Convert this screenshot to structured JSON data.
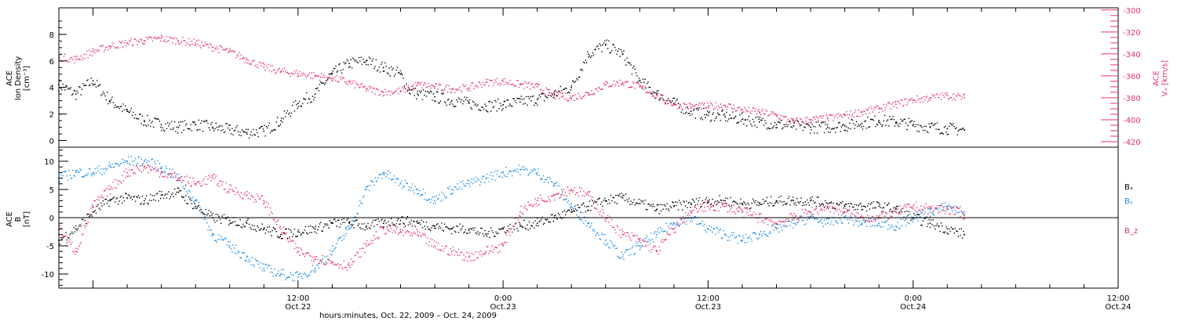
{
  "colors": {
    "black": "#000000",
    "pink": "#e8336a",
    "blue": "#1a8ae6"
  },
  "xaxis": {
    "title": "hours:minutes, Oct. 22, 2009 – Oct. 24, 2009",
    "range_hours": [
      -14,
      48
    ],
    "ticks": [
      {
        "h": 0,
        "time": "12:00",
        "date": "Oct.22"
      },
      {
        "h": 12,
        "time": "0:00",
        "date": "Oct.23"
      },
      {
        "h": 24,
        "time": "12:00",
        "date": "Oct.23"
      },
      {
        "h": 36,
        "time": "0:00",
        "date": "Oct.24"
      },
      {
        "h": 48,
        "time": "12:00",
        "date": "Oct.24"
      }
    ],
    "data_end_hours": 39
  },
  "chart_data": [
    {
      "type": "scatter",
      "panel": "top",
      "ylabel_left": [
        "ACE",
        "Ion Density",
        "[cm⁻³]"
      ],
      "ylim_left": [
        -0.5,
        10
      ],
      "yticks_left": [
        0,
        2,
        4,
        6,
        8
      ],
      "ylabel_right": [
        "ACE",
        "Vₓ [km/s]"
      ],
      "ylim_right": [
        -425,
        -298
      ],
      "yticks_right": [
        -420,
        -400,
        -380,
        -360,
        -340,
        -320,
        -300
      ],
      "series": [
        {
          "axis": "left",
          "color": "black",
          "points": [
            [
              -14,
              4.2
            ],
            [
              -13,
              3.5
            ],
            [
              -12,
              4.5
            ],
            [
              -11,
              3.0
            ],
            [
              -10,
              2.2
            ],
            [
              -9,
              1.5
            ],
            [
              -8,
              1.2
            ],
            [
              -7,
              1.0
            ],
            [
              -6,
              1.2
            ],
            [
              -5,
              1.0
            ],
            [
              -4,
              0.8
            ],
            [
              -3,
              0.6
            ],
            [
              -2,
              0.7
            ],
            [
              -1,
              1.5
            ],
            [
              0,
              2.8
            ],
            [
              1,
              3.5
            ],
            [
              2,
              5.0
            ],
            [
              3,
              5.8
            ],
            [
              4,
              6.0
            ],
            [
              5,
              5.5
            ],
            [
              6,
              5.0
            ],
            [
              6.5,
              3.8
            ],
            [
              7,
              3.5
            ],
            [
              8,
              3.3
            ],
            [
              9,
              3.0
            ],
            [
              10,
              2.8
            ],
            [
              11,
              2.6
            ],
            [
              12,
              2.7
            ],
            [
              13,
              2.9
            ],
            [
              14,
              3.1
            ],
            [
              15,
              3.5
            ],
            [
              16,
              4.0
            ],
            [
              17,
              6.5
            ],
            [
              18,
              7.2
            ],
            [
              19,
              6.5
            ],
            [
              20,
              4.5
            ],
            [
              21,
              3.5
            ],
            [
              22,
              2.8
            ],
            [
              23,
              2.2
            ],
            [
              24,
              1.9
            ],
            [
              25,
              1.8
            ],
            [
              26,
              1.6
            ],
            [
              27,
              1.4
            ],
            [
              28,
              1.2
            ],
            [
              29,
              1.1
            ],
            [
              30,
              1.0
            ],
            [
              31,
              1.0
            ],
            [
              32,
              1.1
            ],
            [
              33,
              1.3
            ],
            [
              34,
              1.5
            ],
            [
              35,
              1.4
            ],
            [
              36,
              1.2
            ],
            [
              37,
              1.0
            ],
            [
              38,
              0.9
            ],
            [
              39,
              0.8
            ]
          ]
        },
        {
          "axis": "right",
          "color": "pink",
          "points": [
            [
              -14,
              -343
            ],
            [
              -13,
              -345
            ],
            [
              -12,
              -338
            ],
            [
              -11,
              -333
            ],
            [
              -10,
              -330
            ],
            [
              -9,
              -328
            ],
            [
              -8,
              -326
            ],
            [
              -7,
              -328
            ],
            [
              -6,
              -330
            ],
            [
              -5,
              -334
            ],
            [
              -4,
              -338
            ],
            [
              -3,
              -345
            ],
            [
              -2,
              -352
            ],
            [
              -1,
              -356
            ],
            [
              0,
              -358
            ],
            [
              1,
              -360
            ],
            [
              2,
              -362
            ],
            [
              3,
              -366
            ],
            [
              4,
              -372
            ],
            [
              5,
              -375
            ],
            [
              6,
              -374
            ],
            [
              7,
              -368
            ],
            [
              8,
              -370
            ],
            [
              9,
              -372
            ],
            [
              10,
              -371
            ],
            [
              11,
              -366
            ],
            [
              12,
              -365
            ],
            [
              13,
              -368
            ],
            [
              14,
              -370
            ],
            [
              15,
              -378
            ],
            [
              16,
              -380
            ],
            [
              17,
              -376
            ],
            [
              18,
              -368
            ],
            [
              19,
              -366
            ],
            [
              20,
              -370
            ],
            [
              21,
              -378
            ],
            [
              22,
              -386
            ],
            [
              23,
              -388
            ],
            [
              24,
              -388
            ],
            [
              25,
              -387
            ],
            [
              26,
              -391
            ],
            [
              27,
              -393
            ],
            [
              28,
              -396
            ],
            [
              29,
              -402
            ],
            [
              30,
              -400
            ],
            [
              31,
              -399
            ],
            [
              32,
              -396
            ],
            [
              33,
              -393
            ],
            [
              34,
              -390
            ],
            [
              35,
              -386
            ],
            [
              36,
              -382
            ],
            [
              37,
              -380
            ],
            [
              38,
              -378
            ],
            [
              39,
              -380
            ]
          ]
        }
      ]
    },
    {
      "type": "scatter",
      "panel": "bottom",
      "ylabel_left": [
        "ACE",
        "B",
        "[nT]"
      ],
      "ylim_left": [
        -12.5,
        12.5
      ],
      "yticks_left": [
        -10,
        -5,
        0,
        5,
        10
      ],
      "legend": [
        {
          "text": "Bₓ",
          "color": "black"
        },
        {
          "text": "Bᵧ",
          "color": "blue"
        },
        {
          "text": "B_z",
          "color": "pink"
        }
      ],
      "series": [
        {
          "name": "Bx",
          "color": "black",
          "points": [
            [
              -14,
              -4
            ],
            [
              -13,
              -2
            ],
            [
              -12,
              1
            ],
            [
              -11,
              3
            ],
            [
              -10,
              3.5
            ],
            [
              -9,
              3
            ],
            [
              -8,
              4
            ],
            [
              -7,
              4.5
            ],
            [
              -6,
              2
            ],
            [
              -5,
              0
            ],
            [
              -4,
              -0.5
            ],
            [
              -3,
              -1
            ],
            [
              -2,
              -2
            ],
            [
              -1,
              -3
            ],
            [
              0,
              -2.5
            ],
            [
              1,
              -2
            ],
            [
              2,
              -1
            ],
            [
              3,
              -1
            ],
            [
              4,
              -1.5
            ],
            [
              5,
              -1
            ],
            [
              6,
              -0.5
            ],
            [
              7,
              -1
            ],
            [
              8,
              -1.5
            ],
            [
              9,
              -2
            ],
            [
              10,
              -2
            ],
            [
              11,
              -3
            ],
            [
              12,
              -2
            ],
            [
              13,
              -1.5
            ],
            [
              14,
              -1
            ],
            [
              15,
              0
            ],
            [
              16,
              1
            ],
            [
              17,
              2
            ],
            [
              18,
              3
            ],
            [
              19,
              3.5
            ],
            [
              20,
              2.5
            ],
            [
              21,
              1.5
            ],
            [
              22,
              2
            ],
            [
              23,
              2.5
            ],
            [
              24,
              3
            ],
            [
              25,
              3
            ],
            [
              26,
              2.5
            ],
            [
              27,
              2.5
            ],
            [
              28,
              3
            ],
            [
              29,
              3
            ],
            [
              30,
              3
            ],
            [
              31,
              2.5
            ],
            [
              32,
              2
            ],
            [
              33,
              2
            ],
            [
              34,
              2
            ],
            [
              35,
              1.5
            ],
            [
              36,
              0
            ],
            [
              37,
              -1
            ],
            [
              38,
              -2
            ],
            [
              39,
              -3
            ]
          ]
        },
        {
          "name": "By",
          "color": "blue",
          "points": [
            [
              -14,
              7
            ],
            [
              -13,
              8
            ],
            [
              -12,
              8
            ],
            [
              -11,
              9
            ],
            [
              -10,
              10
            ],
            [
              -9,
              10
            ],
            [
              -8,
              9
            ],
            [
              -7,
              7
            ],
            [
              -6,
              3
            ],
            [
              -5,
              -3
            ],
            [
              -4,
              -5
            ],
            [
              -3,
              -7
            ],
            [
              -2,
              -9
            ],
            [
              -1,
              -10
            ],
            [
              0,
              -10.5
            ],
            [
              1,
              -9
            ],
            [
              2,
              -6
            ],
            [
              3,
              -2
            ],
            [
              4,
              5
            ],
            [
              5,
              8
            ],
            [
              6,
              6
            ],
            [
              7,
              5
            ],
            [
              8,
              3
            ],
            [
              9,
              5
            ],
            [
              10,
              6
            ],
            [
              11,
              7
            ],
            [
              12,
              8
            ],
            [
              13,
              8.5
            ],
            [
              14,
              8
            ],
            [
              15,
              6
            ],
            [
              16,
              2
            ],
            [
              17,
              -1
            ],
            [
              18,
              -4
            ],
            [
              19,
              -7
            ],
            [
              20,
              -5
            ],
            [
              21,
              -3
            ],
            [
              22,
              -1
            ],
            [
              23,
              0
            ],
            [
              24,
              -2
            ],
            [
              25,
              -3
            ],
            [
              26,
              -4
            ],
            [
              27,
              -3
            ],
            [
              28,
              -2
            ],
            [
              29,
              -1
            ],
            [
              30,
              0
            ],
            [
              31,
              -1
            ],
            [
              32,
              0
            ],
            [
              33,
              -1
            ],
            [
              34,
              -1
            ],
            [
              35,
              -1.5
            ],
            [
              36,
              0
            ],
            [
              37,
              1
            ],
            [
              38,
              2
            ],
            [
              39,
              1
            ]
          ]
        },
        {
          "name": "Bz",
          "color": "pink",
          "points": [
            [
              -14,
              -2
            ],
            [
              -13,
              -6
            ],
            [
              -12,
              2
            ],
            [
              -11,
              5
            ],
            [
              -10,
              8
            ],
            [
              -9,
              9
            ],
            [
              -8,
              8
            ],
            [
              -7,
              7
            ],
            [
              -6,
              6
            ],
            [
              -5,
              7
            ],
            [
              -4,
              5
            ],
            [
              -3,
              4
            ],
            [
              -2,
              3
            ],
            [
              -1,
              -2
            ],
            [
              0,
              -6
            ],
            [
              1,
              -7
            ],
            [
              2,
              -8
            ],
            [
              3,
              -8.5
            ],
            [
              4,
              -5
            ],
            [
              5,
              -2
            ],
            [
              6,
              -2.5
            ],
            [
              7,
              -3
            ],
            [
              8,
              -5
            ],
            [
              9,
              -6
            ],
            [
              10,
              -7
            ],
            [
              11,
              -6
            ],
            [
              12,
              -5
            ],
            [
              13,
              1
            ],
            [
              14,
              3
            ],
            [
              15,
              4
            ],
            [
              16,
              5
            ],
            [
              17,
              4
            ],
            [
              18,
              0
            ],
            [
              19,
              -3
            ],
            [
              20,
              -4
            ],
            [
              21,
              -6
            ],
            [
              22,
              -2
            ],
            [
              23,
              1
            ],
            [
              24,
              2
            ],
            [
              25,
              2
            ],
            [
              26,
              1
            ],
            [
              27,
              0
            ],
            [
              28,
              -1
            ],
            [
              29,
              0
            ],
            [
              30,
              1
            ],
            [
              31,
              2
            ],
            [
              32,
              1
            ],
            [
              33,
              0
            ],
            [
              34,
              0
            ],
            [
              35,
              1
            ],
            [
              36,
              2
            ],
            [
              37,
              1.5
            ],
            [
              38,
              1.5
            ],
            [
              39,
              0.5
            ]
          ]
        }
      ]
    }
  ]
}
